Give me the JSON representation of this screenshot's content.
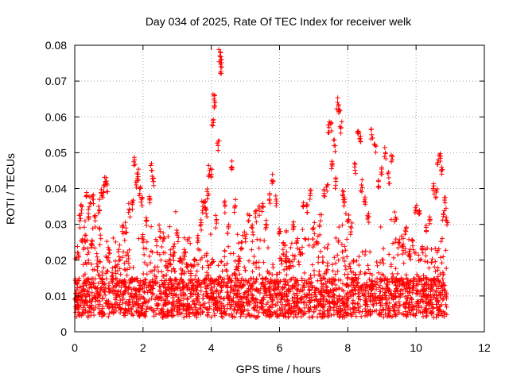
{
  "chart_data": {
    "type": "scatter",
    "title": "Day 034 of 2025, Rate Of TEC Index for receiver welk",
    "xlabel": "GPS time / hours",
    "ylabel": "ROTI / TECUs",
    "xlim": [
      0,
      12
    ],
    "ylim": [
      0,
      0.08
    ],
    "x_ticks": [
      0,
      2,
      4,
      6,
      8,
      10,
      12
    ],
    "y_ticks": [
      0,
      0.01,
      0.02,
      0.03,
      0.04,
      0.05,
      0.06,
      0.07,
      0.08
    ],
    "x_tick_labels": [
      "0",
      "2",
      "4",
      "6",
      "8",
      "10",
      "12"
    ],
    "y_tick_labels": [
      "0",
      "0.01",
      "0.02",
      "0.03",
      "0.04",
      "0.05",
      "0.06",
      "0.07",
      "0.08"
    ],
    "grid": true,
    "marker": "+",
    "color": "#ff0000",
    "data_x_range_hours": [
      0,
      10.9
    ],
    "series": [
      {
        "name": "ROTI",
        "points": [
          [
            0.05,
            0.009
          ],
          [
            0.1,
            0.022
          ],
          [
            0.15,
            0.031
          ],
          [
            0.2,
            0.034
          ],
          [
            0.25,
            0.012
          ],
          [
            0.3,
            0.027
          ],
          [
            0.35,
            0.038
          ],
          [
            0.4,
            0.033
          ],
          [
            0.45,
            0.036
          ],
          [
            0.5,
            0.024
          ],
          [
            0.55,
            0.037
          ],
          [
            0.6,
            0.031
          ],
          [
            0.65,
            0.019
          ],
          [
            0.7,
            0.035
          ],
          [
            0.75,
            0.027
          ],
          [
            0.8,
            0.038
          ],
          [
            0.85,
            0.039
          ],
          [
            0.9,
            0.042
          ],
          [
            0.95,
            0.041
          ],
          [
            1.0,
            0.022
          ],
          [
            1.1,
            0.015
          ],
          [
            1.2,
            0.018
          ],
          [
            1.3,
            0.021
          ],
          [
            1.4,
            0.028
          ],
          [
            1.5,
            0.029
          ],
          [
            1.6,
            0.034
          ],
          [
            1.7,
            0.036
          ],
          [
            1.75,
            0.048
          ],
          [
            1.8,
            0.041
          ],
          [
            1.85,
            0.044
          ],
          [
            1.9,
            0.04
          ],
          [
            1.95,
            0.037
          ],
          [
            2.0,
            0.025
          ],
          [
            2.1,
            0.031
          ],
          [
            2.2,
            0.036
          ],
          [
            2.25,
            0.045
          ],
          [
            2.3,
            0.042
          ],
          [
            2.4,
            0.024
          ],
          [
            2.5,
            0.028
          ],
          [
            2.6,
            0.026
          ],
          [
            2.7,
            0.018
          ],
          [
            2.8,
            0.02
          ],
          [
            2.9,
            0.022
          ],
          [
            3.0,
            0.027
          ],
          [
            3.1,
            0.02
          ],
          [
            3.2,
            0.022
          ],
          [
            3.3,
            0.018
          ],
          [
            3.4,
            0.017
          ],
          [
            3.5,
            0.02
          ],
          [
            3.6,
            0.025
          ],
          [
            3.7,
            0.03
          ],
          [
            3.75,
            0.035
          ],
          [
            3.8,
            0.036
          ],
          [
            3.85,
            0.033
          ],
          [
            3.9,
            0.038
          ],
          [
            3.95,
            0.045
          ],
          [
            4.0,
            0.044
          ],
          [
            4.05,
            0.059
          ],
          [
            4.08,
            0.065
          ],
          [
            4.1,
            0.063
          ],
          [
            4.15,
            0.031
          ],
          [
            4.2,
            0.052
          ],
          [
            4.25,
            0.077
          ],
          [
            4.28,
            0.074
          ],
          [
            4.3,
            0.076
          ],
          [
            4.4,
            0.035
          ],
          [
            4.5,
            0.029
          ],
          [
            4.6,
            0.046
          ],
          [
            4.7,
            0.035
          ],
          [
            4.8,
            0.021
          ],
          [
            4.9,
            0.025
          ],
          [
            5.0,
            0.026
          ],
          [
            5.1,
            0.031
          ],
          [
            5.2,
            0.029
          ],
          [
            5.3,
            0.032
          ],
          [
            5.4,
            0.034
          ],
          [
            5.5,
            0.035
          ],
          [
            5.6,
            0.03
          ],
          [
            5.7,
            0.037
          ],
          [
            5.8,
            0.042
          ],
          [
            5.9,
            0.037
          ],
          [
            6.0,
            0.028
          ],
          [
            6.1,
            0.023
          ],
          [
            6.2,
            0.021
          ],
          [
            6.3,
            0.018
          ],
          [
            6.4,
            0.029
          ],
          [
            6.5,
            0.025
          ],
          [
            6.6,
            0.022
          ],
          [
            6.7,
            0.036
          ],
          [
            6.8,
            0.035
          ],
          [
            6.9,
            0.038
          ],
          [
            7.0,
            0.029
          ],
          [
            7.1,
            0.025
          ],
          [
            7.2,
            0.031
          ],
          [
            7.3,
            0.038
          ],
          [
            7.4,
            0.041
          ],
          [
            7.45,
            0.057
          ],
          [
            7.5,
            0.058
          ],
          [
            7.55,
            0.047
          ],
          [
            7.6,
            0.052
          ],
          [
            7.65,
            0.042
          ],
          [
            7.7,
            0.064
          ],
          [
            7.75,
            0.062
          ],
          [
            7.8,
            0.057
          ],
          [
            7.85,
            0.038
          ],
          [
            7.9,
            0.036
          ],
          [
            8.0,
            0.031
          ],
          [
            8.1,
            0.029
          ],
          [
            8.2,
            0.046
          ],
          [
            8.3,
            0.056
          ],
          [
            8.35,
            0.054
          ],
          [
            8.4,
            0.041
          ],
          [
            8.5,
            0.037
          ],
          [
            8.6,
            0.032
          ],
          [
            8.7,
            0.055
          ],
          [
            8.8,
            0.052
          ],
          [
            8.9,
            0.042
          ],
          [
            9.0,
            0.044
          ],
          [
            9.1,
            0.05
          ],
          [
            9.2,
            0.043
          ],
          [
            9.3,
            0.048
          ],
          [
            9.4,
            0.032
          ],
          [
            9.5,
            0.025
          ],
          [
            9.6,
            0.024
          ],
          [
            9.7,
            0.028
          ],
          [
            9.8,
            0.021
          ],
          [
            9.9,
            0.024
          ],
          [
            10.0,
            0.034
          ],
          [
            10.1,
            0.033
          ],
          [
            10.2,
            0.022
          ],
          [
            10.3,
            0.028
          ],
          [
            10.4,
            0.031
          ],
          [
            10.5,
            0.04
          ],
          [
            10.6,
            0.039
          ],
          [
            10.65,
            0.048
          ],
          [
            10.7,
            0.049
          ],
          [
            10.75,
            0.044
          ],
          [
            10.8,
            0.033
          ],
          [
            10.85,
            0.036
          ],
          [
            10.9,
            0.031
          ]
        ]
      }
    ]
  }
}
